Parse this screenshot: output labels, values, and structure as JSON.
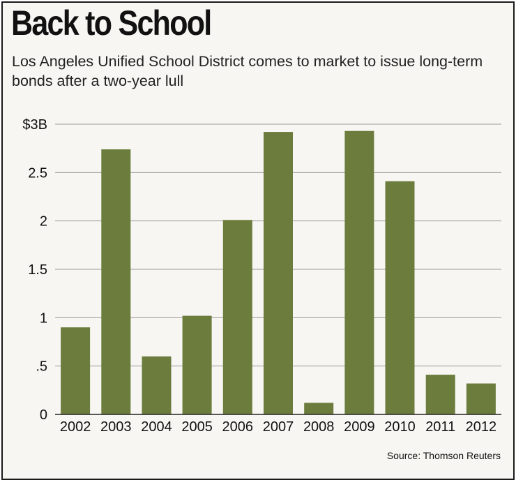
{
  "title": "Back to School",
  "subtitle": "Los Angeles Unified School District comes to market to issue long-term bonds after a two-year lull",
  "source": "Source: Thomson Reuters",
  "colors": {
    "bar": "#6b7c3d",
    "grid": "#9a9a9a",
    "axis": "#222222",
    "background": "#f7f6f2"
  },
  "chart_data": {
    "type": "bar",
    "title": "Back to School",
    "subtitle": "Los Angeles Unified School District comes to market to issue long-term bonds after a two-year lull",
    "xlabel": "",
    "ylabel": "",
    "categories": [
      "2002",
      "2003",
      "2004",
      "2005",
      "2006",
      "2007",
      "2008",
      "2009",
      "2010",
      "2011",
      "2012"
    ],
    "values": [
      0.9,
      2.74,
      0.6,
      1.02,
      2.01,
      2.92,
      0.12,
      2.93,
      2.41,
      0.41,
      0.32
    ],
    "unit": "$B",
    "ylim": [
      0,
      3
    ],
    "yticks": [
      0,
      0.5,
      1,
      1.5,
      2,
      2.5,
      3
    ],
    "ytick_labels": [
      "0",
      ".5",
      "1",
      "1.5",
      "2",
      "2.5",
      "$3B"
    ],
    "grid": true,
    "legend": "none"
  }
}
